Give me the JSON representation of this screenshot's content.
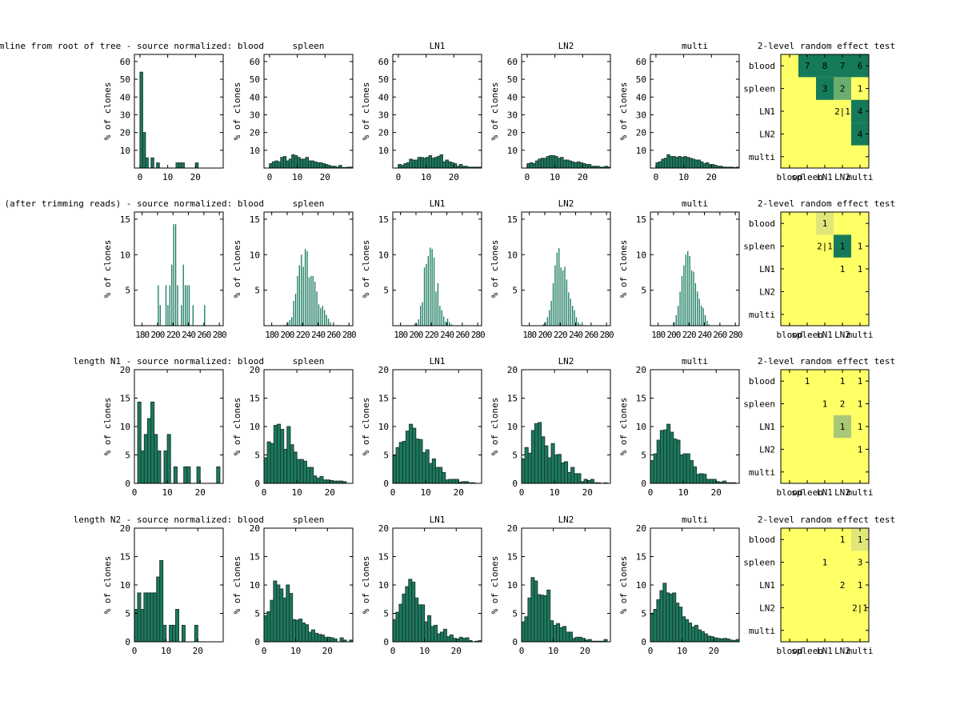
{
  "colors": {
    "bar_fill": "#1a7a60",
    "bar_edge": "#1d3b30",
    "heat_low": "#ffff66",
    "heat_light": "#e0e67a",
    "heat_mid": "#a8c877",
    "heat_mid2": "#6aad6e",
    "heat_high": "#157a5a"
  },
  "chart_data": [
    {
      "type": "bar",
      "row_title": "distance to germline from root of tree - source normalized: blood",
      "ylabel": "% of clones",
      "ylim": [
        0,
        64
      ],
      "yticks": [
        10,
        20,
        30,
        40,
        50,
        60
      ],
      "xlim": [
        -2,
        30
      ],
      "xticks": [
        0,
        10,
        20
      ],
      "bin_start": 0,
      "bin_width": 1,
      "edged": true,
      "panels": [
        {
          "title": "blood",
          "values": [
            54,
            20,
            5.7,
            0,
            5.7,
            0,
            2.9,
            0,
            0,
            0,
            0,
            0,
            0,
            2.9,
            2.9,
            2.9,
            0,
            0,
            0,
            0,
            2.9,
            0,
            0,
            0,
            0,
            0,
            0,
            0,
            0,
            0
          ]
        },
        {
          "title": "spleen",
          "values": [
            2.5,
            3.5,
            4,
            3.5,
            6,
            6.5,
            4,
            5,
            7.5,
            7,
            6,
            5,
            5,
            6,
            4,
            4,
            3.5,
            3,
            3,
            2.5,
            2,
            1.5,
            1,
            1,
            0.5,
            1.5,
            0.3,
            0.3,
            0.5,
            0.5
          ]
        },
        {
          "title": "LN1",
          "values": [
            2,
            1.5,
            2.5,
            3,
            5,
            4.5,
            4.5,
            6,
            6,
            5.5,
            6,
            7,
            5.5,
            6,
            6.5,
            7.5,
            3.5,
            4.5,
            3.5,
            3,
            2.5,
            1,
            2,
            1,
            1,
            0.5,
            0.5,
            0.5,
            0.5,
            0.5
          ]
        },
        {
          "title": "LN2",
          "values": [
            2.5,
            3,
            2.5,
            4,
            5,
            5.5,
            5.5,
            6.5,
            7,
            7,
            6.5,
            5.5,
            6,
            4.5,
            4.5,
            4,
            3.5,
            3,
            3.5,
            3,
            2.5,
            2,
            2,
            1,
            1,
            1,
            0.5,
            0.5,
            1,
            0.5
          ]
        },
        {
          "title": "multi",
          "values": [
            3,
            3.5,
            5,
            5.5,
            7.5,
            6.5,
            6.5,
            6,
            6.5,
            6,
            6.5,
            6,
            5.5,
            5,
            4.5,
            4.5,
            3.5,
            2.5,
            3,
            2,
            2,
            1.5,
            1,
            1,
            0.5,
            0.5,
            0.5,
            0.5,
            0.3,
            0.5
          ]
        }
      ]
    },
    {
      "type": "bar",
      "row_title": "germline length (after trimming reads) - source normalized: blood",
      "ylabel": "% of clones",
      "ylim": [
        0,
        16
      ],
      "yticks": [
        5,
        10,
        15
      ],
      "xlim": [
        170,
        285
      ],
      "xticks": [
        180,
        200,
        220,
        240,
        260,
        280
      ],
      "bin_start": 180,
      "bin_width": 2.5,
      "edged": false,
      "panels": [
        {
          "title": "blood",
          "values": [
            0,
            0,
            0,
            0,
            0,
            0,
            0,
            0,
            5.7,
            2.9,
            0,
            0,
            5.7,
            2.9,
            5.7,
            8.6,
            14.3,
            14.3,
            5.7,
            0,
            2.9,
            8.6,
            5.7,
            5.7,
            5.7,
            0,
            2.9,
            0,
            0,
            0,
            0,
            0,
            2.9,
            0,
            0,
            0,
            0,
            0,
            0,
            0,
            0,
            0,
            0,
            0,
            0
          ]
        },
        {
          "title": "spleen",
          "values": [
            0,
            0,
            0,
            0,
            0,
            0,
            0.1,
            0.1,
            0.5,
            0.8,
            1.2,
            3.5,
            4.5,
            7,
            8.5,
            10,
            8.3,
            10.8,
            10.5,
            6.8,
            7,
            7,
            6.2,
            4.8,
            3,
            2.5,
            2.8,
            2.2,
            1.5,
            1,
            0.5,
            0,
            0,
            0,
            0.1,
            0,
            0,
            0,
            0,
            0,
            0,
            0,
            0,
            0,
            0
          ]
        },
        {
          "title": "LN1",
          "values": [
            0,
            0,
            0,
            0,
            0,
            0,
            0,
            0.2,
            0.3,
            0.9,
            2.8,
            3.3,
            8.2,
            8.7,
            9.8,
            11,
            10.8,
            9.6,
            4.8,
            6,
            2.8,
            2.2,
            1.3,
            0.6,
            1,
            0.5,
            0.2,
            0,
            0,
            0,
            0,
            0,
            0,
            0,
            0,
            0,
            0,
            0,
            0,
            0,
            0,
            0,
            0,
            0,
            0
          ]
        },
        {
          "title": "LN2",
          "values": [
            0,
            0,
            0,
            0,
            0,
            0,
            0,
            0.2,
            0.5,
            1.2,
            2.2,
            3.5,
            6,
            8.5,
            10.3,
            10.9,
            8.2,
            7.8,
            8.3,
            6.5,
            4.7,
            3.8,
            2.8,
            2.2,
            1.2,
            0.5,
            0.2,
            0.5,
            0,
            0,
            0,
            0,
            0,
            0,
            0,
            0,
            0,
            0,
            0,
            0,
            0,
            0,
            0,
            0,
            0
          ]
        },
        {
          "title": "multi",
          "values": [
            0,
            0,
            0,
            0,
            0,
            0,
            0,
            0,
            0.5,
            1.5,
            2.8,
            4.8,
            7,
            8.5,
            10,
            10.5,
            9.8,
            7.8,
            7.6,
            6,
            4.8,
            3.8,
            2.8,
            2.5,
            1.5,
            0.7,
            0.2,
            0,
            0,
            0,
            0,
            0,
            0,
            0,
            0,
            0,
            0,
            0,
            0,
            0,
            0,
            0,
            0,
            0,
            0
          ]
        }
      ]
    },
    {
      "type": "bar",
      "row_title": "length N1 - source normalized: blood",
      "ylabel": "% of clones",
      "ylim": [
        0,
        20
      ],
      "yticks": [
        0,
        5,
        10,
        15,
        20
      ],
      "xlim": [
        0,
        27
      ],
      "xticks": [
        0,
        10,
        20
      ],
      "bin_start": 0,
      "bin_width": 1,
      "edged": true,
      "panels": [
        {
          "title": "blood",
          "values": [
            0,
            14.3,
            5.7,
            8.6,
            11.4,
            14.3,
            8.6,
            5.7,
            0,
            5.7,
            8.6,
            0,
            2.9,
            0,
            0,
            2.9,
            2.9,
            0,
            0,
            2.9,
            0,
            0,
            0,
            0,
            0,
            2.9,
            0
          ]
        },
        {
          "title": "spleen",
          "values": [
            4.5,
            7.3,
            7,
            10.2,
            10.4,
            9.5,
            6,
            10,
            6.8,
            5.5,
            4.2,
            4.2,
            3.9,
            2.8,
            2.8,
            1.3,
            0.9,
            1.2,
            0.6,
            0.6,
            0.5,
            0.4,
            0.4,
            0.4,
            0.3,
            0,
            0
          ]
        },
        {
          "title": "LN1",
          "values": [
            4.9,
            6.3,
            7.2,
            7.4,
            9.2,
            10.4,
            9.7,
            7.8,
            7.7,
            5.4,
            5.9,
            3.5,
            4.3,
            2.8,
            2.8,
            1.9,
            0.6,
            0.7,
            0.7,
            0.7,
            0.2,
            0.3,
            0.3,
            0.1,
            0.1,
            0,
            0
          ]
        },
        {
          "title": "LN2",
          "values": [
            4.3,
            6.3,
            5.3,
            9.3,
            10.5,
            10.7,
            8.2,
            6.6,
            4.5,
            7,
            5,
            5.1,
            3.6,
            3.8,
            1.9,
            2.8,
            1.7,
            1.7,
            0.3,
            0.7,
            0.5,
            0.7,
            0.1,
            0.1,
            0,
            0.1,
            0
          ]
        },
        {
          "title": "multi",
          "values": [
            4,
            5.2,
            7.6,
            9.3,
            9.4,
            10.4,
            9,
            7.8,
            7.6,
            5,
            5.2,
            5.2,
            4,
            2.9,
            1.6,
            1.7,
            1.6,
            0.7,
            0.7,
            0.7,
            0.3,
            0.2,
            0.4,
            0.1,
            0.1,
            0.1,
            0
          ]
        }
      ]
    },
    {
      "type": "bar",
      "row_title": "length N2 - source normalized: blood",
      "ylabel": "% of clones",
      "ylim": [
        0,
        20
      ],
      "yticks": [
        0,
        5,
        10,
        15,
        20
      ],
      "xlim": [
        0,
        28
      ],
      "xticks": [
        0,
        10,
        20
      ],
      "bin_start": 0,
      "bin_width": 1,
      "edged": true,
      "panels": [
        {
          "title": "blood",
          "values": [
            5.7,
            8.6,
            5.7,
            8.6,
            8.6,
            8.6,
            8.6,
            11.4,
            14.3,
            2.9,
            0,
            2.9,
            2.9,
            5.7,
            0,
            2.9,
            0,
            0,
            0,
            2.9,
            0,
            0,
            0,
            0,
            0,
            0,
            0,
            0
          ]
        },
        {
          "title": "spleen",
          "values": [
            4.6,
            5.3,
            7.3,
            10.7,
            10,
            9.3,
            7.7,
            10,
            8.5,
            3.9,
            3.8,
            4,
            3.3,
            3,
            1.7,
            2.1,
            1.5,
            1.3,
            1.2,
            0.8,
            0.8,
            0.7,
            0.5,
            0,
            0.7,
            0.3,
            0,
            0.3
          ]
        },
        {
          "title": "LN1",
          "values": [
            3.9,
            5.2,
            6.6,
            8.4,
            9.7,
            11,
            10.5,
            7.7,
            6.5,
            6.5,
            3.5,
            4.6,
            2.7,
            2.9,
            1.4,
            1.7,
            2.2,
            0.9,
            1.2,
            0.6,
            0.5,
            0.8,
            0.6,
            0.7,
            0.2,
            0,
            0.1,
            0.2
          ]
        },
        {
          "title": "LN2",
          "values": [
            3.5,
            4.4,
            7.7,
            11.3,
            10.7,
            8.3,
            8.2,
            8.1,
            9.1,
            3.7,
            2.9,
            3.2,
            2.5,
            2.7,
            1.7,
            1.7,
            0.6,
            0.8,
            0.8,
            0.6,
            0.3,
            0.4,
            0.1,
            0.1,
            0.1,
            0.1,
            0.4,
            0
          ]
        },
        {
          "title": "multi",
          "values": [
            4.9,
            5.7,
            7.4,
            9,
            10.3,
            8.6,
            8.4,
            8.6,
            6.8,
            6.1,
            4.4,
            3.9,
            3.3,
            2.6,
            2.9,
            2.1,
            1.8,
            1.4,
            1,
            0.9,
            0.7,
            0.6,
            0.5,
            0.6,
            0.5,
            0.3,
            0.2,
            0.4
          ]
        }
      ]
    },
    {
      "type": "heatmap",
      "title": "2-level random effect test",
      "row_labels": [
        "blood",
        "spleen",
        "LN1",
        "LN2",
        "multi"
      ],
      "col_labels": [
        "blood",
        "spleen",
        "LN1",
        "LN2",
        "multi"
      ],
      "rows_data": [
        {
          "cells": [
            [
              null,
              "7",
              "8",
              "7",
              "6"
            ],
            [
              null,
              null,
              "3",
              "2",
              "1"
            ],
            [
              null,
              null,
              null,
              "2|1",
              "4"
            ],
            [
              null,
              null,
              null,
              null,
              "4"
            ],
            [
              null,
              null,
              null,
              null,
              null
            ]
          ],
          "shade": [
            [
              0,
              4,
              4,
              4,
              4
            ],
            [
              0,
              0,
              4,
              3,
              0
            ],
            [
              0,
              0,
              0,
              0,
              4
            ],
            [
              0,
              0,
              0,
              0,
              4
            ],
            [
              0,
              0,
              0,
              0,
              0
            ]
          ]
        },
        {
          "cells": [
            [
              null,
              null,
              "1",
              null,
              null
            ],
            [
              null,
              null,
              "2|1",
              "1",
              "1"
            ],
            [
              null,
              null,
              null,
              "1",
              "1"
            ],
            [
              null,
              null,
              null,
              null,
              null
            ],
            [
              null,
              null,
              null,
              null,
              null
            ]
          ],
          "shade": [
            [
              0,
              0,
              1,
              0,
              0
            ],
            [
              0,
              0,
              0,
              4,
              0
            ],
            [
              0,
              0,
              0,
              0,
              0
            ],
            [
              0,
              0,
              0,
              0,
              0
            ],
            [
              0,
              0,
              0,
              0,
              0
            ]
          ]
        },
        {
          "cells": [
            [
              null,
              "1",
              null,
              "1",
              "1"
            ],
            [
              null,
              null,
              "1",
              "2",
              "1"
            ],
            [
              null,
              null,
              null,
              "1",
              "1"
            ],
            [
              null,
              null,
              null,
              null,
              "1"
            ],
            [
              null,
              null,
              null,
              null,
              null
            ]
          ],
          "shade": [
            [
              0,
              0,
              0,
              0,
              0
            ],
            [
              0,
              0,
              0,
              0,
              0
            ],
            [
              0,
              0,
              0,
              2,
              0
            ],
            [
              0,
              0,
              0,
              0,
              0
            ],
            [
              0,
              0,
              0,
              0,
              0
            ]
          ]
        },
        {
          "cells": [
            [
              null,
              null,
              null,
              "1",
              "1"
            ],
            [
              null,
              null,
              "1",
              null,
              "3"
            ],
            [
              null,
              null,
              null,
              "2",
              "1"
            ],
            [
              null,
              null,
              null,
              null,
              "2|1"
            ],
            [
              null,
              null,
              null,
              null,
              null
            ]
          ],
          "shade": [
            [
              0,
              0,
              0,
              0,
              1
            ],
            [
              0,
              0,
              0,
              0,
              0
            ],
            [
              0,
              0,
              0,
              0,
              0
            ],
            [
              0,
              0,
              0,
              0,
              0
            ],
            [
              0,
              0,
              0,
              0,
              0
            ]
          ]
        }
      ]
    }
  ]
}
